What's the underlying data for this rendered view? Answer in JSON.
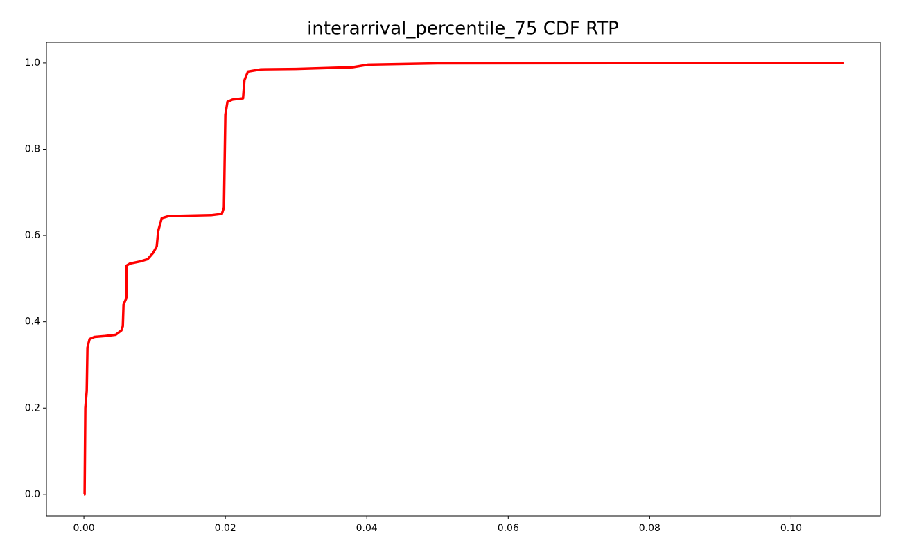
{
  "chart_data": {
    "type": "line",
    "title": "interarrival_percentile_75 CDF RTP",
    "x": [
      0.0,
      0.0001,
      0.0002,
      0.0004,
      0.0005,
      0.0008,
      0.0015,
      0.003,
      0.0045,
      0.0053,
      0.0055,
      0.0056,
      0.006,
      0.006,
      0.0065,
      0.008,
      0.009,
      0.0098,
      0.0103,
      0.0105,
      0.011,
      0.012,
      0.018,
      0.0195,
      0.0198,
      0.02,
      0.0203,
      0.021,
      0.0225,
      0.0227,
      0.0232,
      0.025,
      0.03,
      0.038,
      0.0402,
      0.05,
      0.1075
    ],
    "series": [
      {
        "name": "RTP",
        "color": "#ff0000",
        "values": [
          0.0,
          0.0,
          0.2,
          0.24,
          0.34,
          0.36,
          0.365,
          0.367,
          0.37,
          0.38,
          0.39,
          0.44,
          0.455,
          0.53,
          0.535,
          0.54,
          0.545,
          0.56,
          0.575,
          0.61,
          0.64,
          0.645,
          0.647,
          0.65,
          0.665,
          0.88,
          0.91,
          0.915,
          0.918,
          0.96,
          0.98,
          0.985,
          0.986,
          0.99,
          0.996,
          0.999,
          1.0
        ]
      }
    ],
    "xlim": [
      -0.0053,
      0.1126
    ],
    "ylim": [
      -0.05,
      1.048
    ],
    "xticks": [
      {
        "value": 0,
        "label": "0.00"
      },
      {
        "value": 0.02,
        "label": "0.02"
      },
      {
        "value": 0.04,
        "label": "0.04"
      },
      {
        "value": 0.06,
        "label": "0.06"
      },
      {
        "value": 0.08,
        "label": "0.08"
      },
      {
        "value": 0.1,
        "label": "0.10"
      }
    ],
    "yticks": [
      {
        "value": 0,
        "label": "0.0"
      },
      {
        "value": 0.2,
        "label": "0.2"
      },
      {
        "value": 0.4,
        "label": "0.4"
      },
      {
        "value": 0.6,
        "label": "0.6"
      },
      {
        "value": 0.8,
        "label": "0.8"
      },
      {
        "value": 1,
        "label": "1.0"
      }
    ],
    "grid": false
  }
}
